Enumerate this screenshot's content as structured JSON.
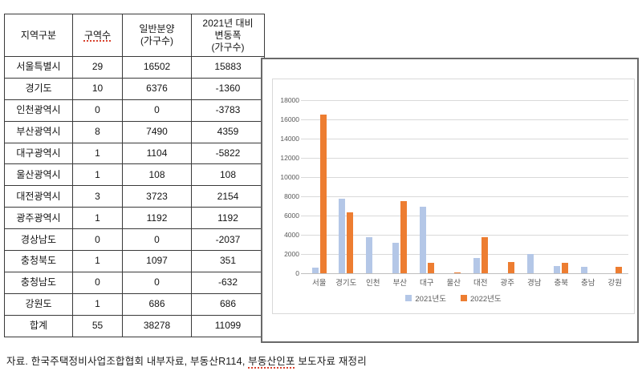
{
  "table": {
    "headers": [
      {
        "label": "지역구분",
        "flagged": false
      },
      {
        "label": "구역수",
        "flagged": true
      },
      {
        "label": "일반분양\n(가구수)",
        "flagged": false
      },
      {
        "label": "2021년 대비\n변동폭\n(가구수)",
        "flagged": false
      }
    ],
    "rows": [
      {
        "region": "서울특별시",
        "zones": "29",
        "units": "16502",
        "change": "15883"
      },
      {
        "region": "경기도",
        "zones": "10",
        "units": "6376",
        "change": "-1360"
      },
      {
        "region": "인천광역시",
        "zones": "0",
        "units": "0",
        "change": "-3783"
      },
      {
        "region": "부산광역시",
        "zones": "8",
        "units": "7490",
        "change": "4359"
      },
      {
        "region": "대구광역시",
        "zones": "1",
        "units": "1104",
        "change": "-5822"
      },
      {
        "region": "울산광역시",
        "zones": "1",
        "units": "108",
        "change": "108"
      },
      {
        "region": "대전광역시",
        "zones": "3",
        "units": "3723",
        "change": "2154"
      },
      {
        "region": "광주광역시",
        "zones": "1",
        "units": "1192",
        "change": "1192"
      },
      {
        "region": "경상남도",
        "zones": "0",
        "units": "0",
        "change": "-2037"
      },
      {
        "region": "충청북도",
        "zones": "1",
        "units": "1097",
        "change": "351"
      },
      {
        "region": "충청남도",
        "zones": "0",
        "units": "0",
        "change": "-632"
      },
      {
        "region": "강원도",
        "zones": "1",
        "units": "686",
        "change": "686"
      },
      {
        "region": "합계",
        "zones": "55",
        "units": "38278",
        "change": "11099"
      }
    ]
  },
  "chart_data": {
    "type": "bar",
    "title": "",
    "xlabel": "",
    "ylabel": "",
    "categories": [
      "서울",
      "경기도",
      "인천",
      "부산",
      "대구",
      "울산",
      "대전",
      "광주",
      "경남",
      "충북",
      "충남",
      "강원"
    ],
    "series": [
      {
        "name": "2021년도",
        "color": "#B4C7E7",
        "values": [
          619,
          7736,
          3783,
          3131,
          6926,
          0,
          1569,
          0,
          2037,
          746,
          632,
          0
        ]
      },
      {
        "name": "2022년도",
        "color": "#ED7D31",
        "values": [
          16502,
          6376,
          0,
          7490,
          1104,
          108,
          3723,
          1192,
          0,
          1097,
          0,
          686
        ]
      }
    ],
    "ylim": [
      0,
      18000
    ],
    "ytick_step": 2000,
    "grid": true,
    "legend_position": "bottom"
  },
  "footer": {
    "prefix": "자료. 한국주택정비사업조합협회 내부자료, 부동산R114, ",
    "flagged": "부동산인포",
    "suffix": " 보도자료 재정리"
  }
}
